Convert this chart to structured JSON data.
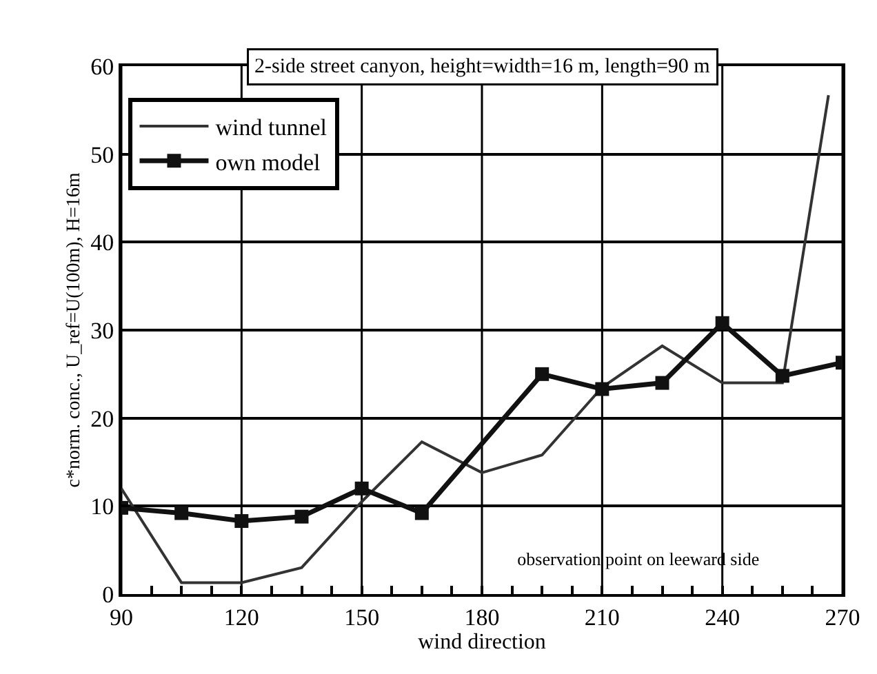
{
  "chart_data": {
    "type": "line",
    "title": "2-side street canyon, height=width=16 m, length=90 m",
    "xlabel": "wind direction",
    "ylabel": "c*norm. conc., U_ref=U(100m), H=16m",
    "annotations": [
      "observation point on leeward side"
    ],
    "series": [
      {
        "name": "wind tunnel",
        "color": "#333333",
        "marker": "none",
        "x": [
          90,
          105,
          120,
          135,
          150,
          165,
          180,
          195,
          210,
          225,
          240,
          255,
          266.5
        ],
        "values": [
          12,
          1.3,
          1.3,
          3,
          10.5,
          17.3,
          13.8,
          15.8,
          23.5,
          28.2,
          24,
          24,
          56.7
        ]
      },
      {
        "name": "own model",
        "color": "#111111",
        "marker": "square",
        "x": [
          90,
          105,
          120,
          135,
          150,
          165,
          195,
          210,
          225,
          240,
          255,
          270
        ],
        "values": [
          9.8,
          9.2,
          8.3,
          8.8,
          12,
          9.2,
          25,
          23.3,
          24,
          30.8,
          24.8,
          26.3
        ]
      }
    ],
    "xlim": [
      90,
      270
    ],
    "xticks": [
      90,
      {
        "value": 97.5,
        "label": null
      },
      {
        "value": 105,
        "label": null
      },
      {
        "value": 112.5,
        "label": null
      },
      120,
      {
        "value": 127.5,
        "label": null
      },
      {
        "value": 135,
        "label": null
      },
      {
        "value": 142.5,
        "label": null
      },
      150,
      {
        "value": 157.5,
        "label": null
      },
      {
        "value": 165,
        "label": null
      },
      {
        "value": 172.5,
        "label": null
      },
      180,
      {
        "value": 187.5,
        "label": null
      },
      {
        "value": 195,
        "label": null
      },
      {
        "value": 202.5,
        "label": null
      },
      210,
      {
        "value": 217.5,
        "label": null
      },
      {
        "value": 225,
        "label": null
      },
      {
        "value": 232.5,
        "label": null
      },
      240,
      {
        "value": 247.5,
        "label": null
      },
      {
        "value": 255,
        "label": null
      },
      {
        "value": 262.5,
        "label": null
      },
      270
    ],
    "ylim": [
      0,
      60
    ],
    "yticks": [
      0,
      10,
      20,
      30,
      40,
      50,
      60
    ],
    "grid": true,
    "legend": "top left"
  }
}
